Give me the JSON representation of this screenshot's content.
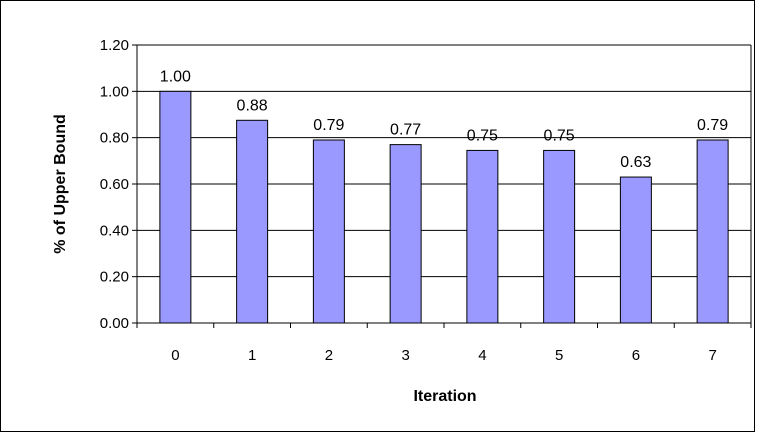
{
  "chart_data": {
    "type": "bar",
    "title": "",
    "xlabel": "Iteration",
    "ylabel": "% of Upper Bound",
    "categories": [
      "0",
      "1",
      "2",
      "3",
      "4",
      "5",
      "6",
      "7"
    ],
    "values": [
      1.0,
      0.875,
      0.79,
      0.77,
      0.745,
      0.745,
      0.63,
      0.79
    ],
    "data_labels": [
      "1.00",
      "0.88",
      "0.79",
      "0.77",
      "0.75",
      "0.75",
      "0.63",
      "0.79"
    ],
    "ylim": [
      0,
      1.2
    ],
    "yticks": [
      0,
      0.2,
      0.4,
      0.6,
      0.8,
      1.0,
      1.2
    ],
    "ytick_labels": [
      "0.00",
      "0.20",
      "0.40",
      "0.60",
      "0.80",
      "1.00",
      "1.20"
    ],
    "grid": true,
    "legend": "none",
    "colors": {
      "bar_fill": "#9999ff",
      "bar_stroke": "#000000",
      "grid": "#000000",
      "background": "#ffffff"
    }
  }
}
